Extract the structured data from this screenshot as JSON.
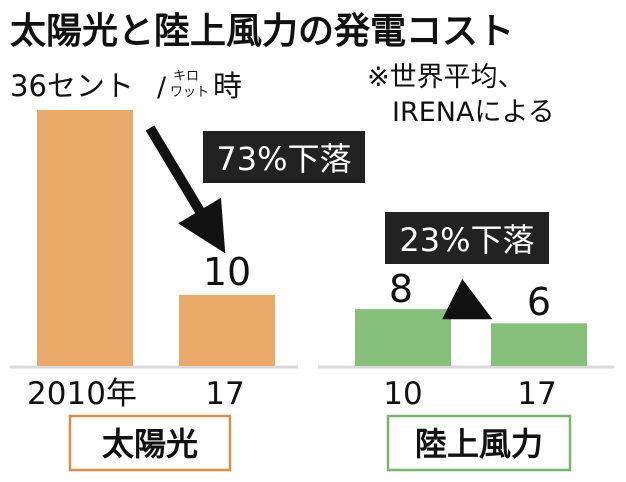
{
  "chart_data": {
    "type": "bar",
    "title": "太陽光と陸上風力の発電コスト",
    "unit_value": "36セント",
    "unit_suffix": "/",
    "unit_stack_top": "キロ",
    "unit_stack_bottom": "ワット",
    "unit_tail": "時",
    "note_line1": "※世界平均、",
    "note_line2": "IRENAによる",
    "ylim": [
      0,
      36
    ],
    "groups": [
      {
        "name": "太陽光",
        "color": "#e8a96a",
        "categories": [
          "2010年",
          "17"
        ],
        "values": [
          36,
          10
        ],
        "data_labels": [
          "",
          "10"
        ],
        "change_label": "73%下落"
      },
      {
        "name": "陸上風力",
        "color": "#86c07b",
        "categories": [
          "10",
          "17"
        ],
        "values": [
          8,
          6
        ],
        "data_labels": [
          "8",
          "6"
        ],
        "change_label": "23%下落"
      }
    ]
  },
  "colors": {
    "text": "#111111",
    "callout_bg": "#222222",
    "callout_text": "#ffffff",
    "baseline": "#d9d9d9",
    "solar_box_border": "#d98e4a",
    "wind_box_border": "#79b56c"
  }
}
